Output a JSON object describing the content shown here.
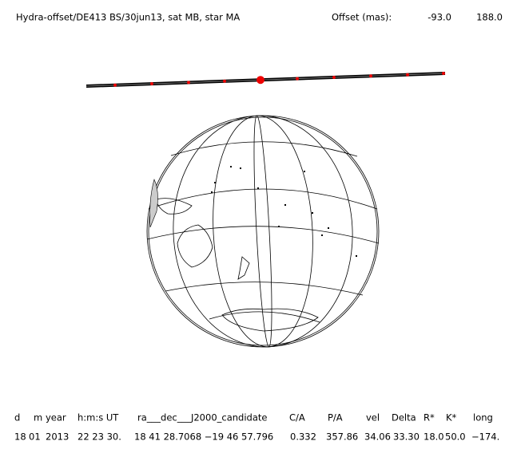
{
  "header": {
    "title": "Hydra-offset/DE413 BS/30jun13, sat MB, star MA",
    "offset_label": "Offset (mas):",
    "offset_values": [
      "-93.0",
      "188.0"
    ]
  },
  "table": {
    "columns": [
      "d",
      "m",
      "year",
      "h:m:s UT",
      "ra___dec___J2000_candidate",
      "C/A",
      "P/A",
      "vel",
      "Delta",
      "R*",
      "K*",
      "long"
    ],
    "rows": [
      [
        "18",
        "01",
        "2013",
        "22 23 30.",
        "18 41 28.7068 −19 46 57.796",
        "0.332",
        "357.86",
        "34.06",
        "33.30",
        "18.0",
        "50.0",
        "−174."
      ]
    ]
  }
}
